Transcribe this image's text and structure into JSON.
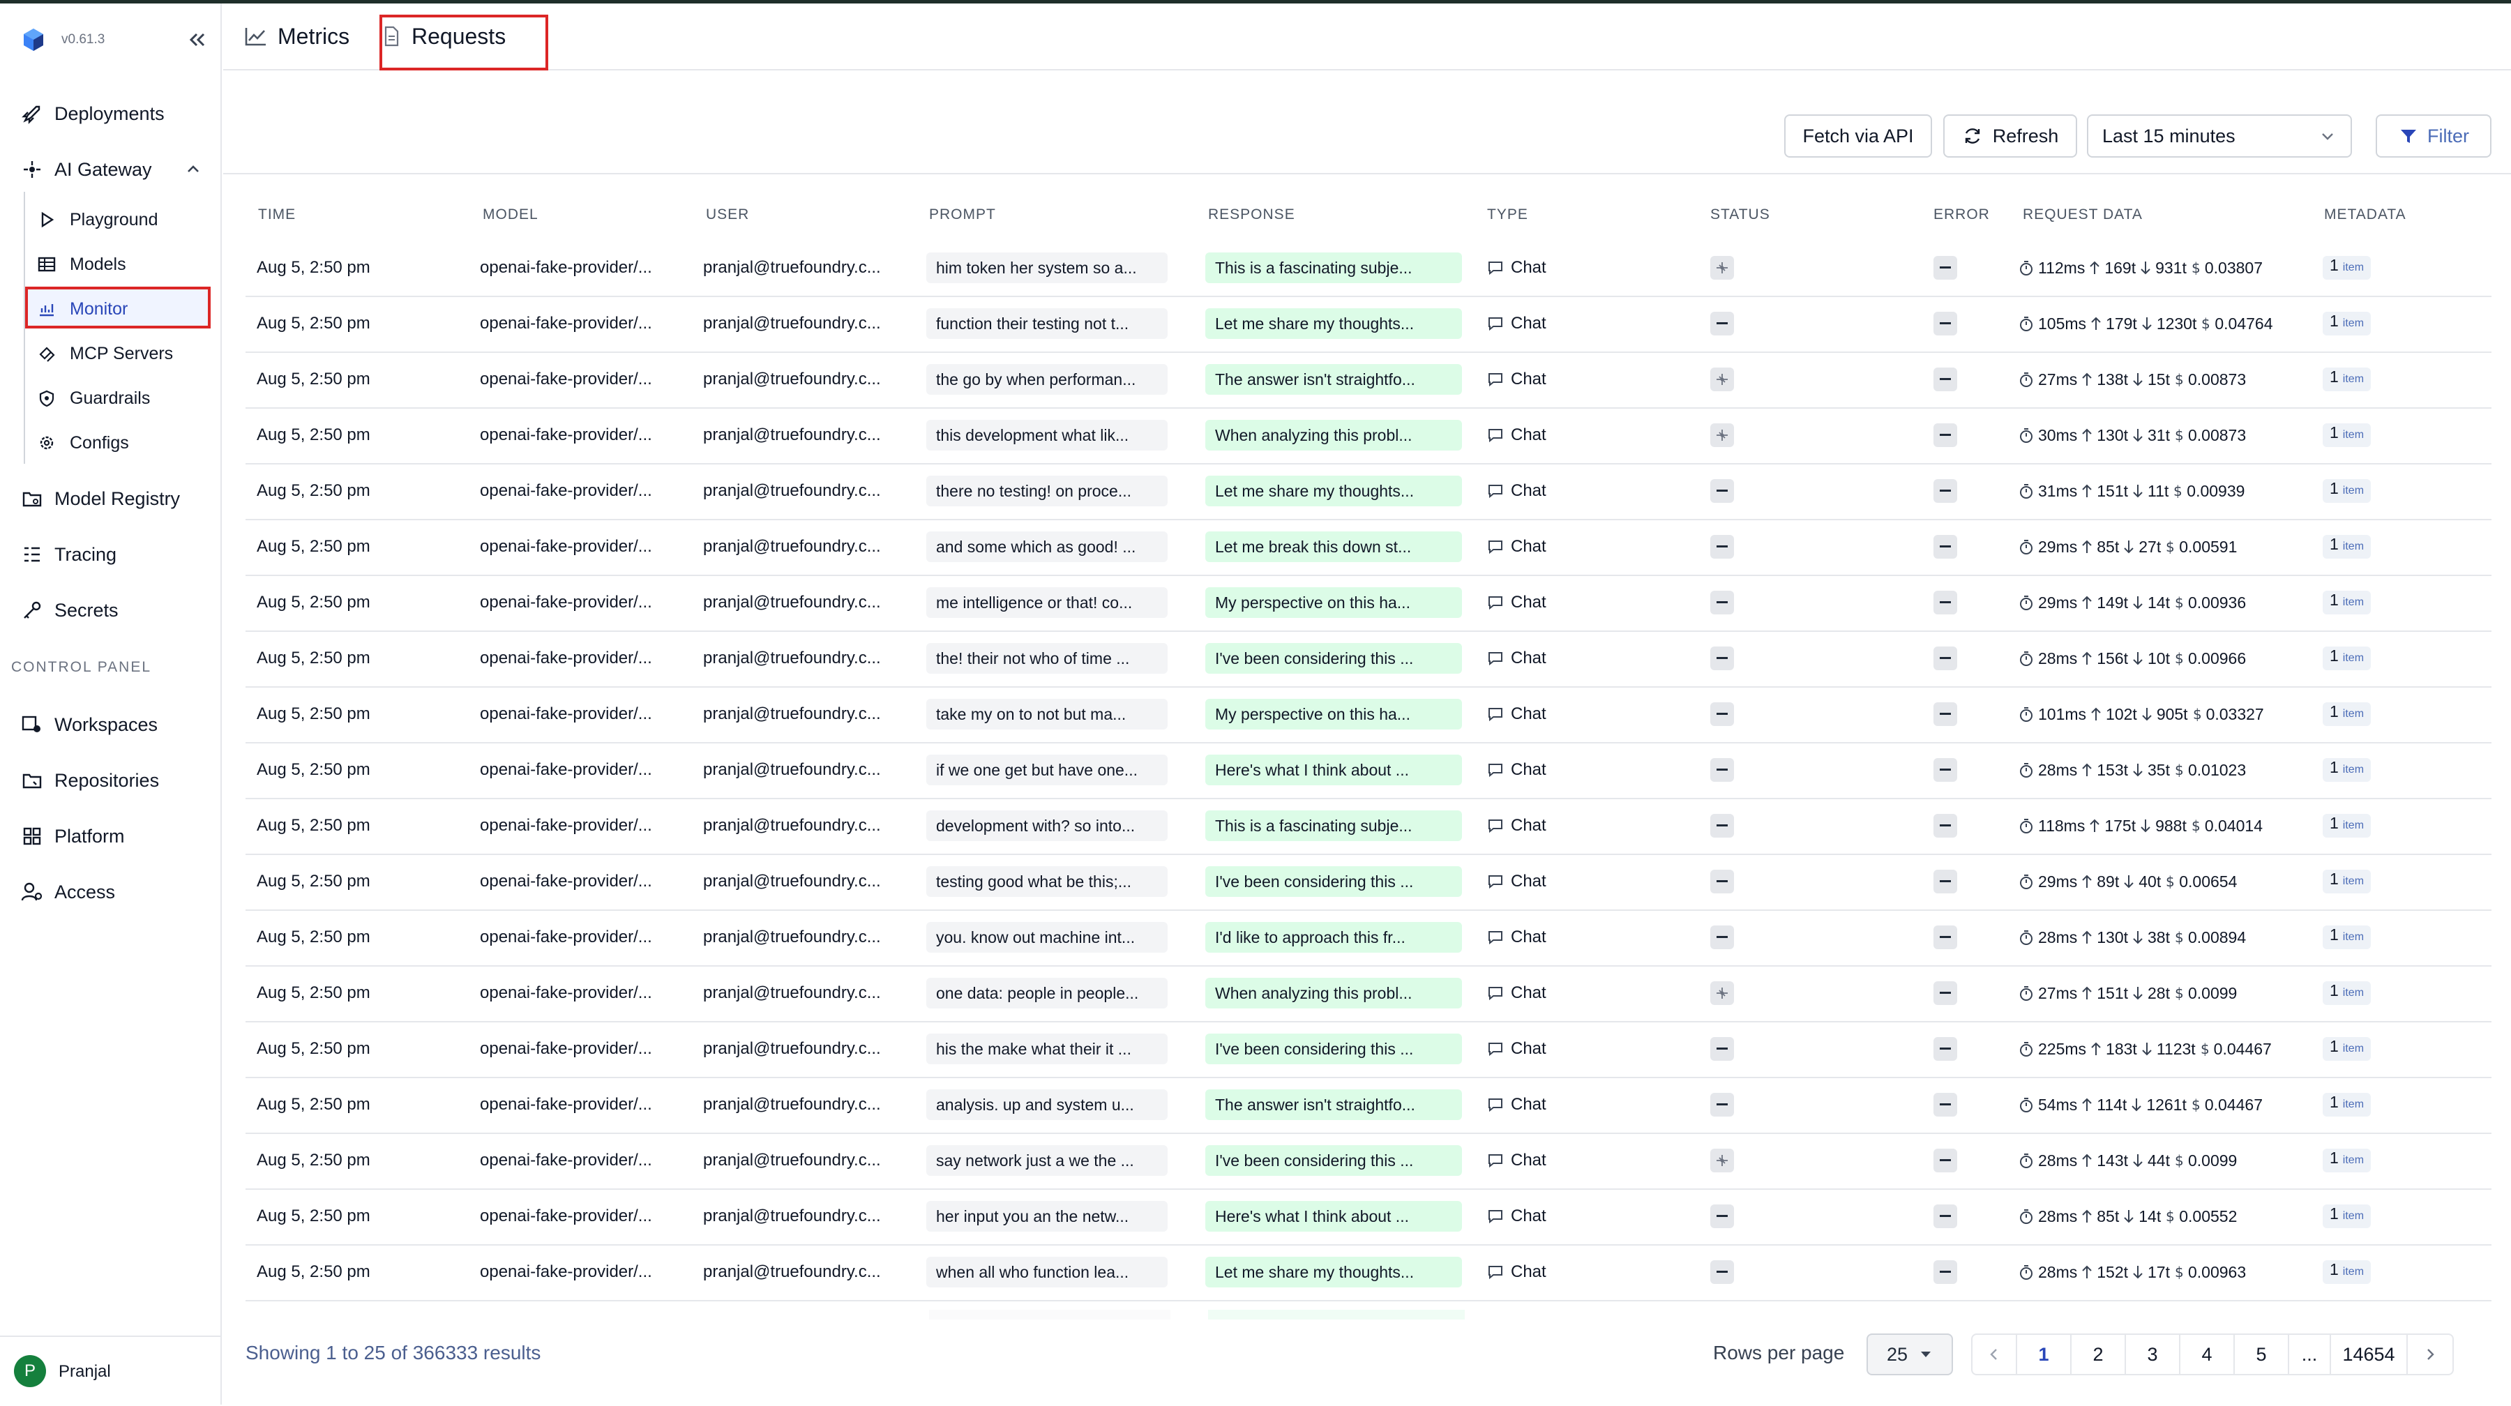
{
  "app": {
    "version": "v0.61.3"
  },
  "sidebar": {
    "items": [
      {
        "label": "Deployments",
        "icon": "rocket-icon"
      },
      {
        "label": "AI Gateway",
        "icon": "gateway-icon"
      },
      {
        "label": "Model Registry",
        "icon": "model-registry-icon"
      },
      {
        "label": "Tracing",
        "icon": "tracing-icon"
      },
      {
        "label": "Secrets",
        "icon": "key-icon"
      }
    ],
    "gateway_subitems": [
      {
        "label": "Playground",
        "icon": "play-icon"
      },
      {
        "label": "Models",
        "icon": "table-icon"
      },
      {
        "label": "Monitor",
        "icon": "chart-icon"
      },
      {
        "label": "MCP Servers",
        "icon": "mcp-icon"
      },
      {
        "label": "Guardrails",
        "icon": "shield-icon"
      },
      {
        "label": "Configs",
        "icon": "gear-icon"
      }
    ],
    "section_title": "CONTROL PANEL",
    "control_items": [
      {
        "label": "Workspaces",
        "icon": "workspaces-icon"
      },
      {
        "label": "Repositories",
        "icon": "repositories-icon"
      },
      {
        "label": "Platform",
        "icon": "platform-icon"
      },
      {
        "label": "Access",
        "icon": "access-icon"
      }
    ],
    "user": {
      "initial": "P",
      "name": "Pranjal"
    }
  },
  "tabs": [
    {
      "label": "Metrics",
      "icon": "line-chart-icon"
    },
    {
      "label": "Requests",
      "icon": "document-icon"
    }
  ],
  "toolbar": {
    "fetch_label": "Fetch via API",
    "refresh_label": "Refresh",
    "time_range": "Last 15 minutes",
    "filter_label": "Filter"
  },
  "table": {
    "columns": [
      "TIME",
      "MODEL",
      "USER",
      "PROMPT",
      "RESPONSE",
      "TYPE",
      "STATUS",
      "ERROR",
      "REQUEST DATA",
      "METADATA"
    ],
    "rows": [
      {
        "time": "Aug 5, 2:50 pm",
        "model": "openai-fake-provider/...",
        "user": "pranjal@truefoundry.c...",
        "prompt": "him token her system so a...",
        "response": "This is a fascinating subje...",
        "type": "Chat",
        "status": "flow",
        "error": "—",
        "latency": "112ms",
        "tin": "169t",
        "tout": "931t",
        "cost": "0.03807",
        "meta_n": "1",
        "meta_t": "item"
      },
      {
        "time": "Aug 5, 2:50 pm",
        "model": "openai-fake-provider/...",
        "user": "pranjal@truefoundry.c...",
        "prompt": "function their testing not t...",
        "response": "Let me share my thoughts...",
        "type": "Chat",
        "status": "dash",
        "error": "—",
        "latency": "105ms",
        "tin": "179t",
        "tout": "1230t",
        "cost": "0.04764",
        "meta_n": "1",
        "meta_t": "item"
      },
      {
        "time": "Aug 5, 2:50 pm",
        "model": "openai-fake-provider/...",
        "user": "pranjal@truefoundry.c...",
        "prompt": "the go by when performan...",
        "response": "The answer isn't straightfo...",
        "type": "Chat",
        "status": "flow",
        "error": "—",
        "latency": "27ms",
        "tin": "138t",
        "tout": "15t",
        "cost": "0.00873",
        "meta_n": "1",
        "meta_t": "item"
      },
      {
        "time": "Aug 5, 2:50 pm",
        "model": "openai-fake-provider/...",
        "user": "pranjal@truefoundry.c...",
        "prompt": "this development what lik...",
        "response": "When analyzing this probl...",
        "type": "Chat",
        "status": "flow",
        "error": "—",
        "latency": "30ms",
        "tin": "130t",
        "tout": "31t",
        "cost": "0.00873",
        "meta_n": "1",
        "meta_t": "item"
      },
      {
        "time": "Aug 5, 2:50 pm",
        "model": "openai-fake-provider/...",
        "user": "pranjal@truefoundry.c...",
        "prompt": "there no testing! on proce...",
        "response": "Let me share my thoughts...",
        "type": "Chat",
        "status": "dash",
        "error": "—",
        "latency": "31ms",
        "tin": "151t",
        "tout": "11t",
        "cost": "0.00939",
        "meta_n": "1",
        "meta_t": "item"
      },
      {
        "time": "Aug 5, 2:50 pm",
        "model": "openai-fake-provider/...",
        "user": "pranjal@truefoundry.c...",
        "prompt": "and some which as good! ...",
        "response": "Let me break this down st...",
        "type": "Chat",
        "status": "dash",
        "error": "—",
        "latency": "29ms",
        "tin": "85t",
        "tout": "27t",
        "cost": "0.00591",
        "meta_n": "1",
        "meta_t": "item"
      },
      {
        "time": "Aug 5, 2:50 pm",
        "model": "openai-fake-provider/...",
        "user": "pranjal@truefoundry.c...",
        "prompt": "me intelligence or that! co...",
        "response": "My perspective on this ha...",
        "type": "Chat",
        "status": "dash",
        "error": "—",
        "latency": "29ms",
        "tin": "149t",
        "tout": "14t",
        "cost": "0.00936",
        "meta_n": "1",
        "meta_t": "item"
      },
      {
        "time": "Aug 5, 2:50 pm",
        "model": "openai-fake-provider/...",
        "user": "pranjal@truefoundry.c...",
        "prompt": "the! their not who of time ...",
        "response": "I've been considering this ...",
        "type": "Chat",
        "status": "dash",
        "error": "—",
        "latency": "28ms",
        "tin": "156t",
        "tout": "10t",
        "cost": "0.00966",
        "meta_n": "1",
        "meta_t": "item"
      },
      {
        "time": "Aug 5, 2:50 pm",
        "model": "openai-fake-provider/...",
        "user": "pranjal@truefoundry.c...",
        "prompt": "take my on to not but ma...",
        "response": "My perspective on this ha...",
        "type": "Chat",
        "status": "dash",
        "error": "—",
        "latency": "101ms",
        "tin": "102t",
        "tout": "905t",
        "cost": "0.03327",
        "meta_n": "1",
        "meta_t": "item"
      },
      {
        "time": "Aug 5, 2:50 pm",
        "model": "openai-fake-provider/...",
        "user": "pranjal@truefoundry.c...",
        "prompt": "if we one get but have one...",
        "response": "Here's what I think about ...",
        "type": "Chat",
        "status": "dash",
        "error": "—",
        "latency": "28ms",
        "tin": "153t",
        "tout": "35t",
        "cost": "0.01023",
        "meta_n": "1",
        "meta_t": "item"
      },
      {
        "time": "Aug 5, 2:50 pm",
        "model": "openai-fake-provider/...",
        "user": "pranjal@truefoundry.c...",
        "prompt": "development with? so into...",
        "response": "This is a fascinating subje...",
        "type": "Chat",
        "status": "dash",
        "error": "—",
        "latency": "118ms",
        "tin": "175t",
        "tout": "988t",
        "cost": "0.04014",
        "meta_n": "1",
        "meta_t": "item"
      },
      {
        "time": "Aug 5, 2:50 pm",
        "model": "openai-fake-provider/...",
        "user": "pranjal@truefoundry.c...",
        "prompt": "testing good what be this;...",
        "response": "I've been considering this ...",
        "type": "Chat",
        "status": "dash",
        "error": "—",
        "latency": "29ms",
        "tin": "89t",
        "tout": "40t",
        "cost": "0.00654",
        "meta_n": "1",
        "meta_t": "item"
      },
      {
        "time": "Aug 5, 2:50 pm",
        "model": "openai-fake-provider/...",
        "user": "pranjal@truefoundry.c...",
        "prompt": "you. know out machine int...",
        "response": "I'd like to approach this fr...",
        "type": "Chat",
        "status": "dash",
        "error": "—",
        "latency": "28ms",
        "tin": "130t",
        "tout": "38t",
        "cost": "0.00894",
        "meta_n": "1",
        "meta_t": "item"
      },
      {
        "time": "Aug 5, 2:50 pm",
        "model": "openai-fake-provider/...",
        "user": "pranjal@truefoundry.c...",
        "prompt": "one data: people in people...",
        "response": "When analyzing this probl...",
        "type": "Chat",
        "status": "flow",
        "error": "—",
        "latency": "27ms",
        "tin": "151t",
        "tout": "28t",
        "cost": "0.0099",
        "meta_n": "1",
        "meta_t": "item"
      },
      {
        "time": "Aug 5, 2:50 pm",
        "model": "openai-fake-provider/...",
        "user": "pranjal@truefoundry.c...",
        "prompt": "his the make what their it ...",
        "response": "I've been considering this ...",
        "type": "Chat",
        "status": "dash",
        "error": "—",
        "latency": "225ms",
        "tin": "183t",
        "tout": "1123t",
        "cost": "0.04467",
        "meta_n": "1",
        "meta_t": "item"
      },
      {
        "time": "Aug 5, 2:50 pm",
        "model": "openai-fake-provider/...",
        "user": "pranjal@truefoundry.c...",
        "prompt": "analysis. up and system u...",
        "response": "The answer isn't straightfo...",
        "type": "Chat",
        "status": "dash",
        "error": "—",
        "latency": "54ms",
        "tin": "114t",
        "tout": "1261t",
        "cost": "0.04467",
        "meta_n": "1",
        "meta_t": "item"
      },
      {
        "time": "Aug 5, 2:50 pm",
        "model": "openai-fake-provider/...",
        "user": "pranjal@truefoundry.c...",
        "prompt": "say network just a we the ...",
        "response": "I've been considering this ...",
        "type": "Chat",
        "status": "flow",
        "error": "—",
        "latency": "28ms",
        "tin": "143t",
        "tout": "44t",
        "cost": "0.0099",
        "meta_n": "1",
        "meta_t": "item"
      },
      {
        "time": "Aug 5, 2:50 pm",
        "model": "openai-fake-provider/...",
        "user": "pranjal@truefoundry.c...",
        "prompt": "her input you an the netw...",
        "response": "Here's what I think about ...",
        "type": "Chat",
        "status": "dash",
        "error": "—",
        "latency": "28ms",
        "tin": "85t",
        "tout": "14t",
        "cost": "0.00552",
        "meta_n": "1",
        "meta_t": "item"
      },
      {
        "time": "Aug 5, 2:50 pm",
        "model": "openai-fake-provider/...",
        "user": "pranjal@truefoundry.c...",
        "prompt": "when all who function lea...",
        "response": "Let me share my thoughts...",
        "type": "Chat",
        "status": "dash",
        "error": "—",
        "latency": "28ms",
        "tin": "152t",
        "tout": "17t",
        "cost": "0.00963",
        "meta_n": "1",
        "meta_t": "item"
      }
    ]
  },
  "pagination": {
    "showing": "Showing 1 to 25 of 366333 results",
    "rows_per_page_label": "Rows per page",
    "rows_per_page": "25",
    "pages": [
      "1",
      "2",
      "3",
      "4",
      "5",
      "...",
      "14654"
    ],
    "current_page": "1"
  },
  "colors": {
    "accent": "#2946b8",
    "highlight": "#dc2626",
    "response_bg": "#dcfce7",
    "prompt_bg": "#f3f4f6"
  }
}
